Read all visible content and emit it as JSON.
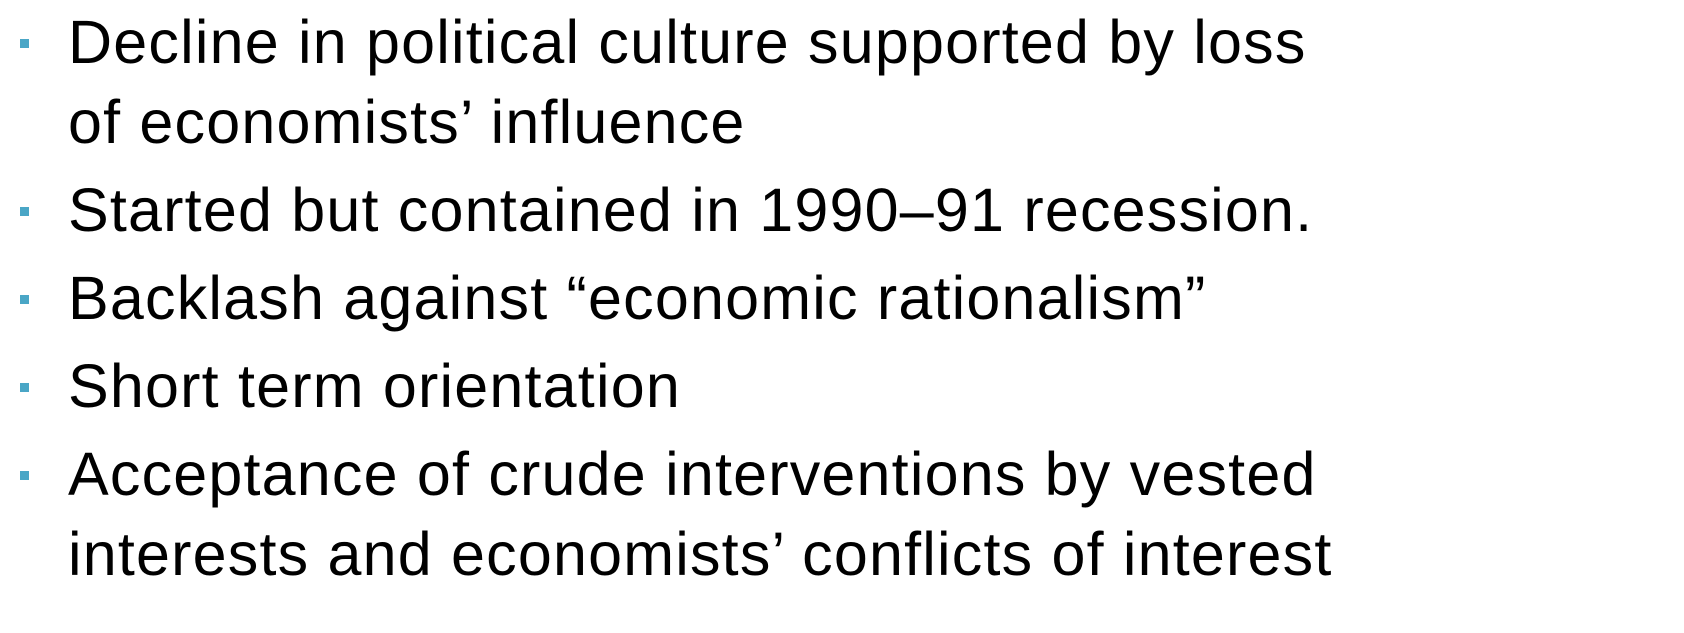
{
  "bullets": [
    {
      "lines": [
        "Decline in political culture supported by loss",
        "of economists’ influence"
      ]
    },
    {
      "lines": [
        "Started but contained in 1990–91 recession."
      ]
    },
    {
      "lines": [
        "Backlash against “economic rationalism”"
      ]
    },
    {
      "lines": [
        "Short term orientation"
      ]
    },
    {
      "lines": [
        "Acceptance of crude interventions by vested",
        "interests and economists’ conflicts of interest"
      ]
    }
  ]
}
